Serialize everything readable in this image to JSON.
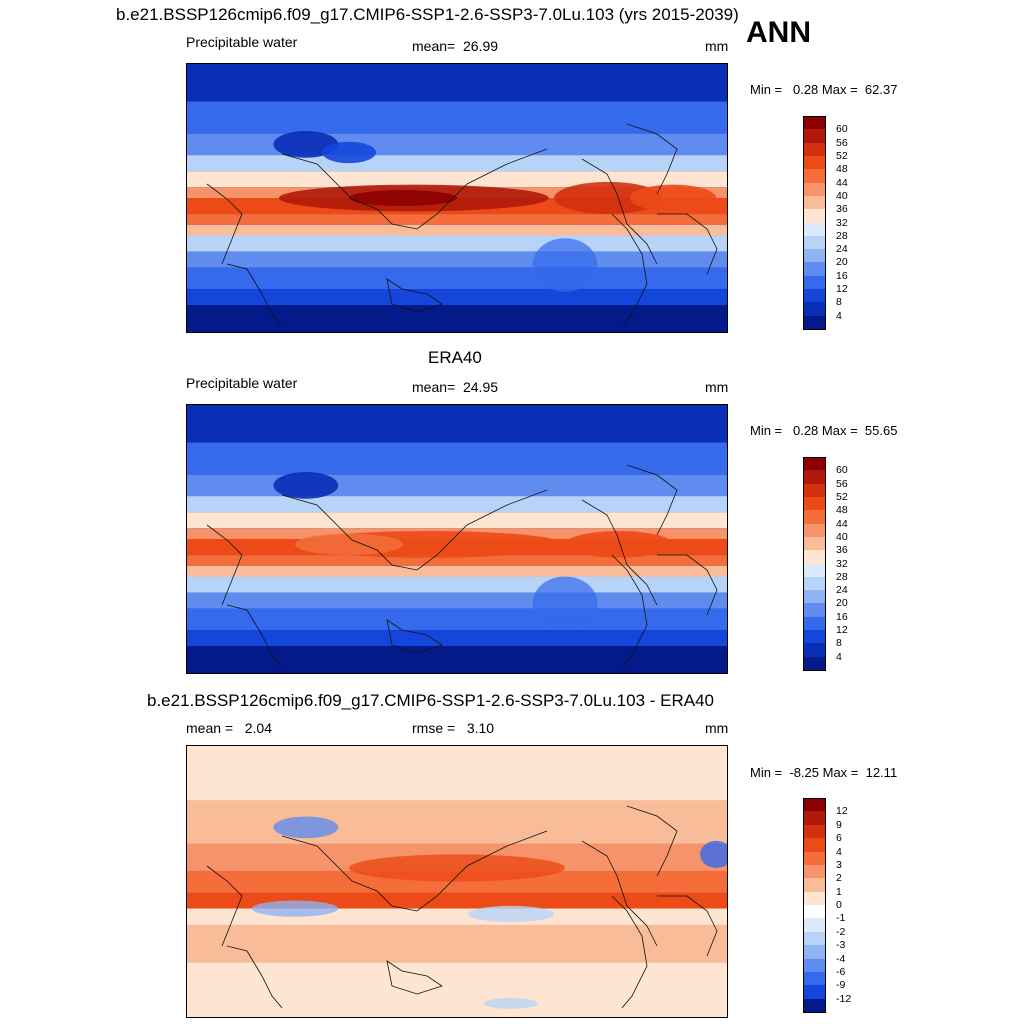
{
  "figure": {
    "season": "ANN",
    "units": "mm",
    "variable": "Precipitable water"
  },
  "panels": [
    {
      "title": "b.e21.BSSP126cmip6.f09_g17.CMIP6-SSP1-2.6-SSP3-7.0Lu.103 (yrs 2015-2039)",
      "left_label": "Precipitable water",
      "center_label": "mean=  26.99",
      "right_label": "mm",
      "minmax": "Min =   0.28 Max =  62.37"
    },
    {
      "title": "ERA40",
      "left_label": "Precipitable water",
      "center_label": "mean=  24.95",
      "right_label": "mm",
      "minmax": "Min =   0.28 Max =  55.65"
    },
    {
      "title": "b.e21.BSSP126cmip6.f09_g17.CMIP6-SSP1-2.6-SSP3-7.0Lu.103 - ERA40",
      "left_label": "mean =   2.04",
      "center_label": "rmse =   3.10",
      "right_label": "mm",
      "minmax": "Min =  -8.25 Max =  12.11"
    }
  ],
  "chart_data": [
    {
      "type": "heatmap",
      "title": "b.e21.BSSP126cmip6.f09_g17.CMIP6-SSP1-2.6-SSP3-7.0Lu.103 (yrs 2015-2039)",
      "field": "Precipitable water",
      "units": "mm",
      "mean": 26.99,
      "min": 0.28,
      "max": 62.37,
      "colorbar_levels": [
        60,
        56,
        52,
        48,
        44,
        40,
        36,
        32,
        28,
        24,
        20,
        16,
        12,
        8,
        4
      ],
      "colors": [
        "#8b0000",
        "#b0190a",
        "#d3300f",
        "#ec4a17",
        "#f46d3a",
        "#f6936a",
        "#f8bc98",
        "#fde5d2",
        "#dbe9fb",
        "#b8d3f8",
        "#8fb3f3",
        "#5f8cee",
        "#356aec",
        "#1546dc",
        "#0a2eb6",
        "#041a8a"
      ]
    },
    {
      "type": "heatmap",
      "title": "ERA40",
      "field": "Precipitable water",
      "units": "mm",
      "mean": 24.95,
      "min": 0.28,
      "max": 55.65,
      "colorbar_levels": [
        60,
        56,
        52,
        48,
        44,
        40,
        36,
        32,
        28,
        24,
        20,
        16,
        12,
        8,
        4
      ],
      "colors": [
        "#8b0000",
        "#b0190a",
        "#d3300f",
        "#ec4a17",
        "#f46d3a",
        "#f6936a",
        "#f8bc98",
        "#fde5d2",
        "#dbe9fb",
        "#b8d3f8",
        "#8fb3f3",
        "#5f8cee",
        "#356aec",
        "#1546dc",
        "#0a2eb6",
        "#041a8a"
      ]
    },
    {
      "type": "heatmap",
      "title": "b.e21.BSSP126cmip6.f09_g17.CMIP6-SSP1-2.6-SSP3-7.0Lu.103 - ERA40",
      "units": "mm",
      "mean": 2.04,
      "rmse": 3.1,
      "min": -8.25,
      "max": 12.11,
      "colorbar_levels": [
        12,
        9,
        6,
        4,
        3,
        2,
        1,
        0,
        -1,
        -2,
        -3,
        -4,
        -6,
        -9,
        -12
      ],
      "colors": [
        "#8b0000",
        "#b0190a",
        "#d3300f",
        "#ec4a17",
        "#f46d3a",
        "#f6936a",
        "#f8bc98",
        "#fde5d2",
        "#ffffff",
        "#dbe9fb",
        "#b8d3f8",
        "#8fb3f3",
        "#5f8cee",
        "#356aec",
        "#1546dc",
        "#041a8a"
      ]
    }
  ]
}
